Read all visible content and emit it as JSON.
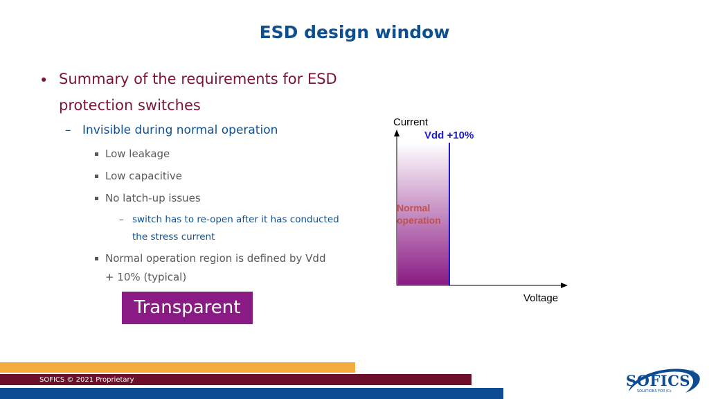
{
  "slide": {
    "title": "ESD design window"
  },
  "bullets": {
    "l1_line1": "Summary of the requirements for ESD",
    "l1_line2": "protection switches",
    "l2": "Invisible during normal operation",
    "l3_a": "Low leakage",
    "l3_b": "Low capacitive",
    "l3_c": "No latch-up issues",
    "l4_line1": "switch has to re-open after it has conducted",
    "l4_line2": "the stress current",
    "l3_d_line1": "Normal operation region is defined by Vdd",
    "l3_d_line2": "+ 10% (typical)"
  },
  "callout": {
    "label": "Transparent"
  },
  "diagram": {
    "y_axis_label": "Current",
    "x_axis_label": "Voltage",
    "vline_label": "Vdd +10%",
    "region_label_line1": "Normal",
    "region_label_line2": "operation",
    "colors": {
      "region_top": "#ffffff",
      "region_bottom": "#8a1a84",
      "vline": "#1a1ad0",
      "region_text": "#c0504d"
    }
  },
  "footer": {
    "text": "SOFICS © 2021 Proprietary",
    "logo_text": "SOFICS",
    "logo_tagline": "SOLUTIONS FOR ICs",
    "logo_mark": "®",
    "colors": {
      "orange": "#f4ab3c",
      "maroon": "#6b0f2a",
      "blue": "#0d4c92"
    }
  }
}
